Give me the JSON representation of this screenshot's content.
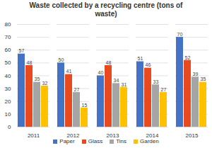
{
  "chart_data": {
    "type": "bar",
    "title": "Waste collected by a recycling centre (tons of waste)",
    "categories": [
      "2011",
      "2012",
      "2013",
      "2014",
      "2015"
    ],
    "series": [
      {
        "name": "Paper",
        "color": "#4472c4",
        "values": [
          57,
          50,
          40,
          51,
          70
        ]
      },
      {
        "name": "Glass",
        "color": "#e84a1e",
        "values": [
          48,
          41,
          48,
          46,
          52
        ]
      },
      {
        "name": "Tins",
        "color": "#a5a5a5",
        "values": [
          35,
          27,
          34,
          33,
          39
        ]
      },
      {
        "name": "Garden",
        "color": "#ffc000",
        "values": [
          32,
          15,
          31,
          27,
          35
        ]
      }
    ],
    "ylim": [
      0,
      80
    ],
    "yticks": [
      0,
      10,
      20,
      30,
      40,
      50,
      60,
      70,
      80
    ],
    "grid": true,
    "data_labels": true,
    "legend": "bottom"
  }
}
